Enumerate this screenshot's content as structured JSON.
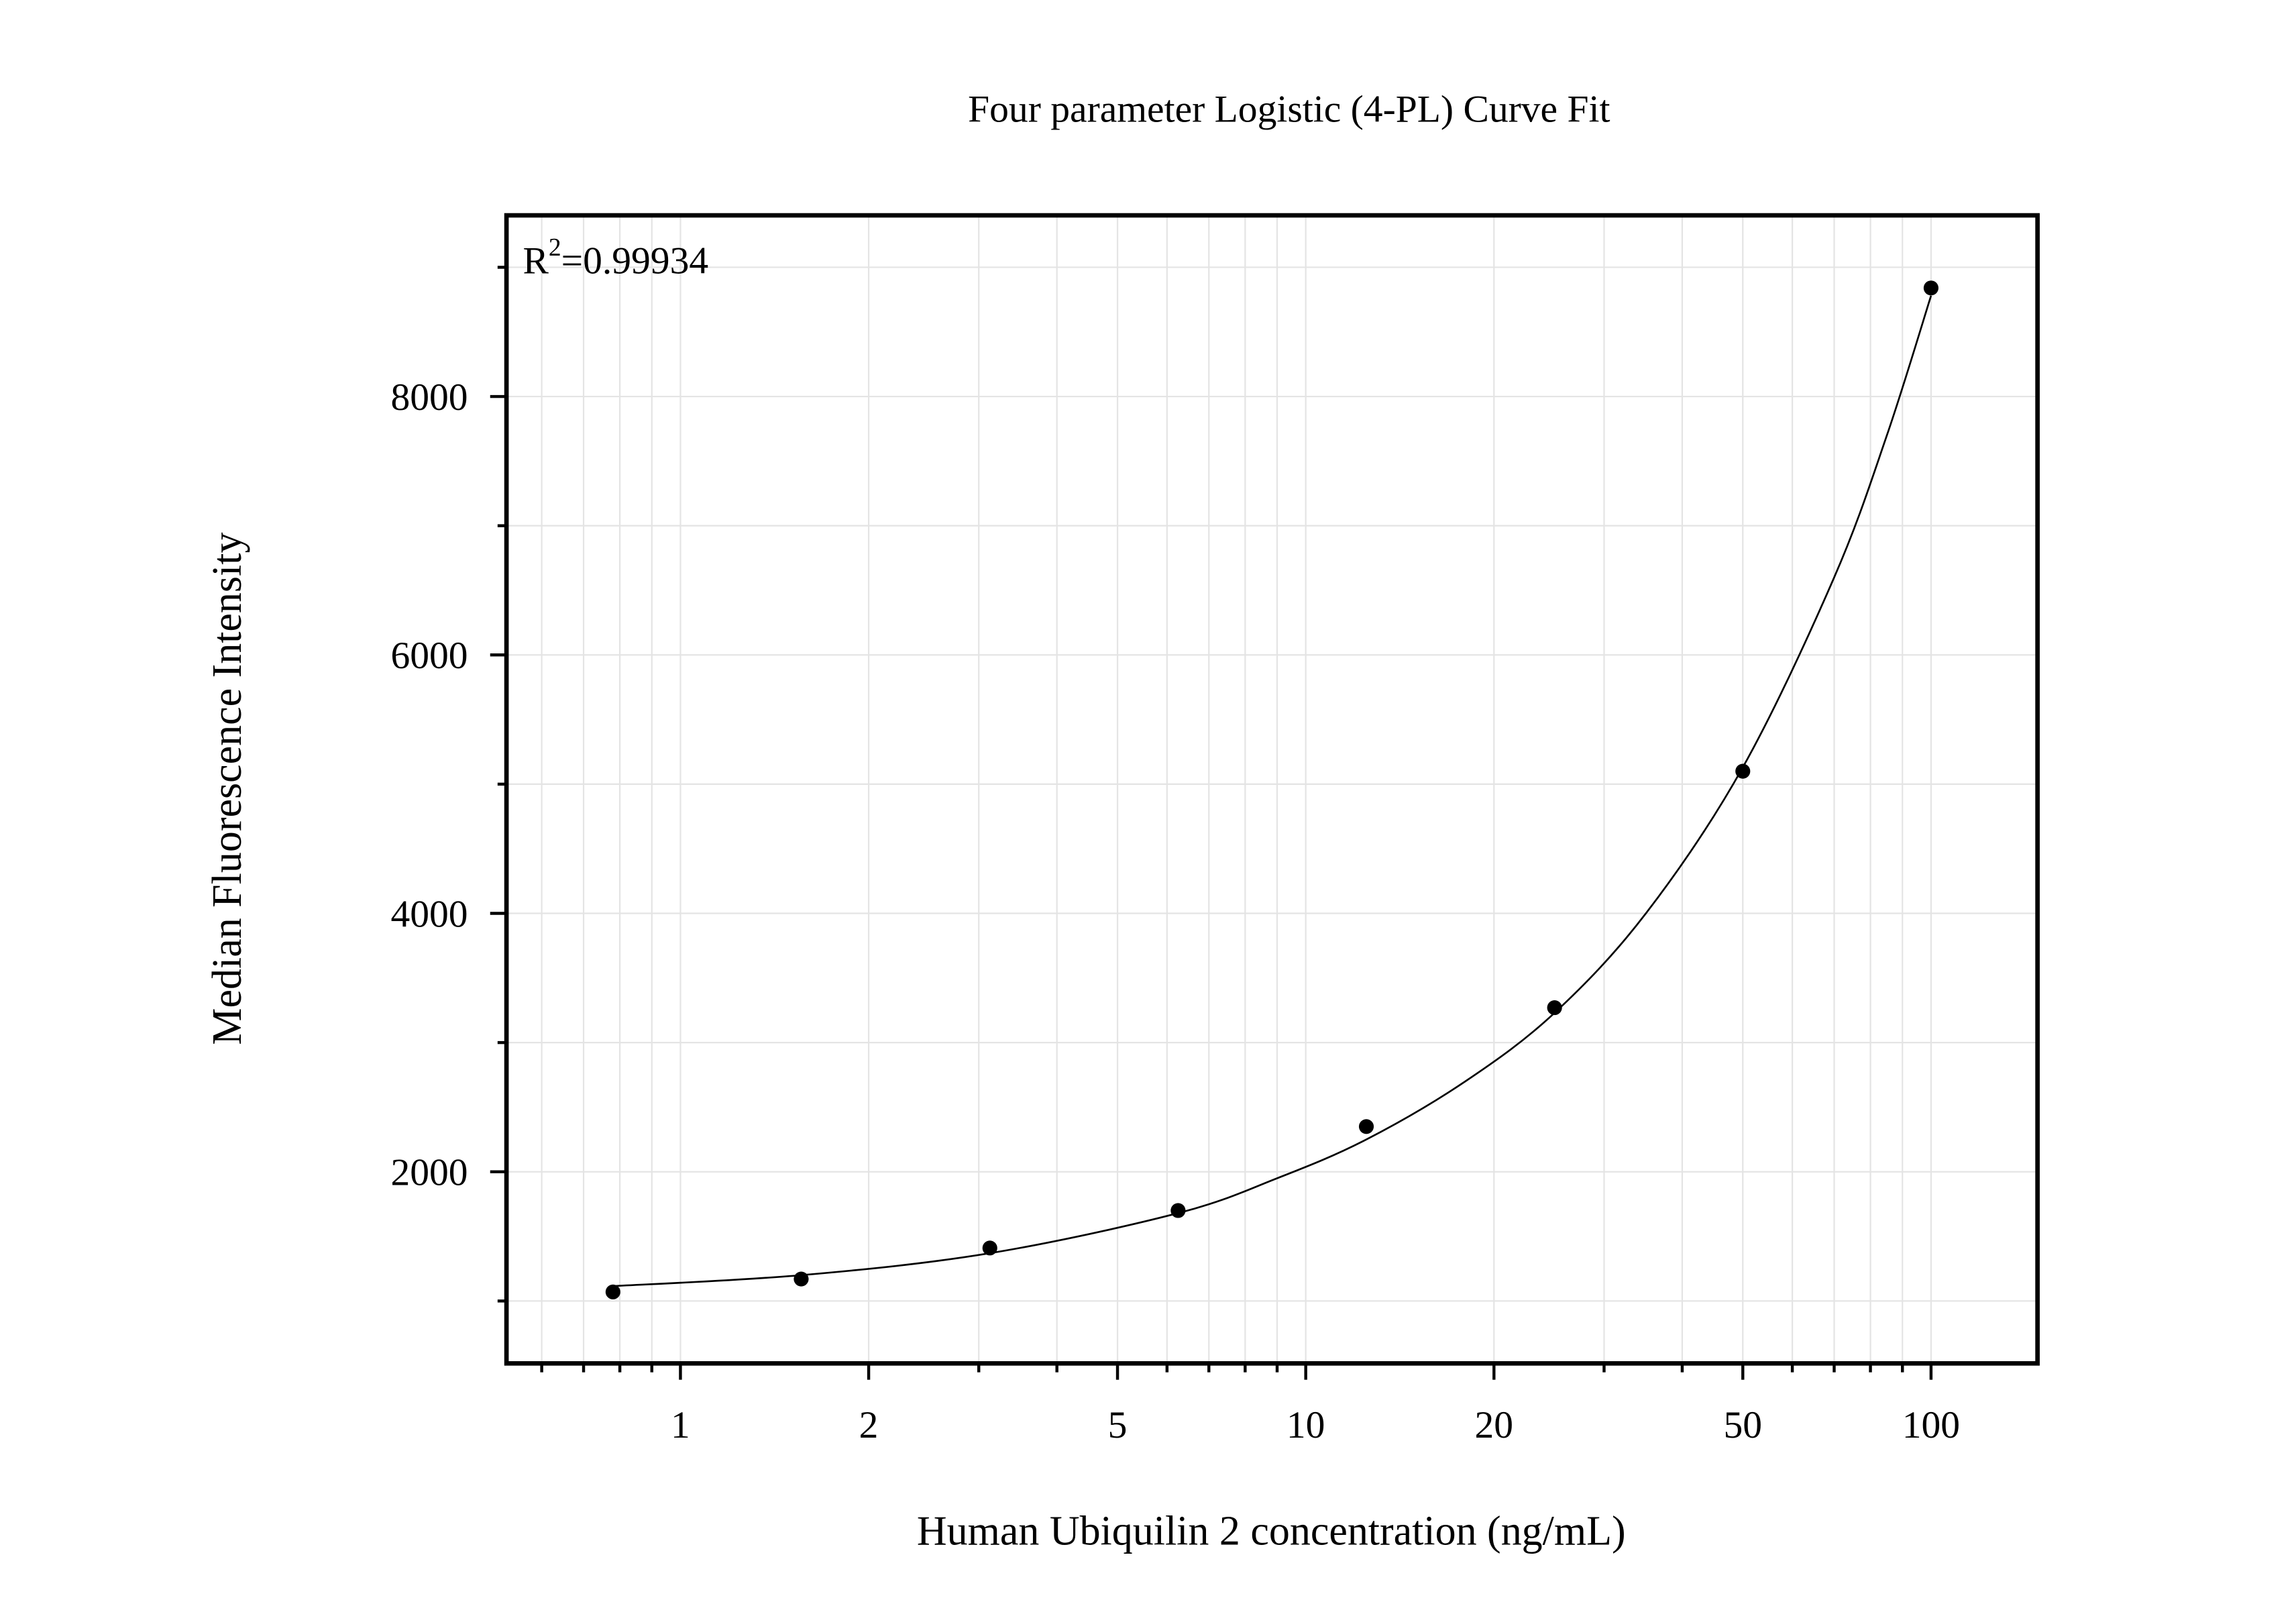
{
  "chart_data": {
    "type": "scatter",
    "title": "Four parameter Logistic (4-PL) Curve Fit",
    "x_label": "Human Ubiquilin 2 concentration (ng/mL)",
    "y_label": "Median Fluorescence Intensity",
    "annotation": {
      "text": "R",
      "superscript": "2",
      "rest": "=0.99934"
    },
    "x_scale": "log",
    "grid": true,
    "color": "#000000",
    "x": [
      0.78,
      1.56,
      3.125,
      6.25,
      12.5,
      25,
      50,
      100
    ],
    "values": [
      1070,
      1170,
      1410,
      1700,
      2350,
      3270,
      5100,
      8840
    ],
    "fit": {
      "x": [
        0.78,
        1.56,
        3.125,
        6.25,
        9,
        12.5,
        18,
        25,
        35,
        50,
        70,
        85,
        100
      ],
      "values": [
        1115,
        1200,
        1370,
        1680,
        1950,
        2250,
        2700,
        3230,
        4000,
        5130,
        6600,
        7700,
        8780
      ]
    },
    "xlim": [
      0.527,
      148
    ],
    "ylim": [
      517,
      9402
    ],
    "xticks": [
      1,
      2,
      5,
      10,
      20,
      50,
      100
    ],
    "minor_xticks": [
      0.6,
      0.7,
      0.8,
      0.9,
      3,
      4,
      6,
      7,
      8,
      9,
      30,
      40,
      60,
      70,
      80,
      90
    ],
    "yticks": [
      2000,
      4000,
      6000,
      8000
    ],
    "minor_yticks": [
      1000,
      3000,
      5000,
      7000,
      9000
    ]
  }
}
